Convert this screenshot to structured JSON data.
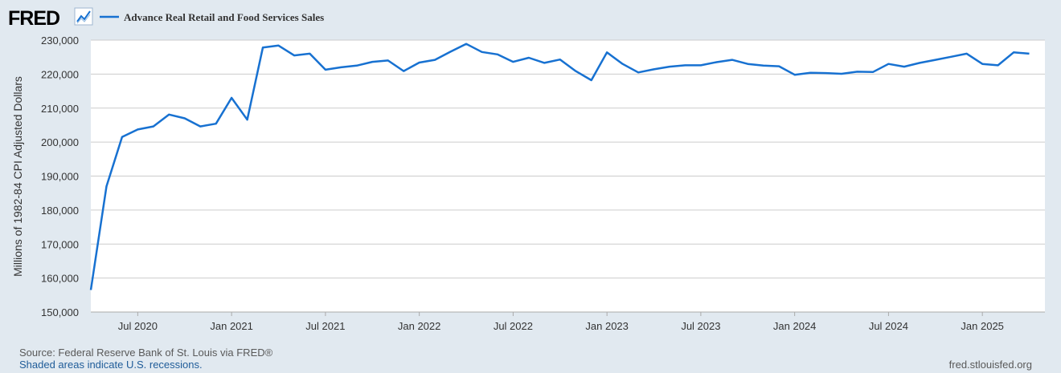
{
  "brand": {
    "logo_text": "FRED",
    "logo_icon": "trend-line-icon"
  },
  "colors": {
    "background": "#e1e9f0",
    "series_line": "#1771d1",
    "plot_bg": "#ffffff",
    "grid": "#cccccc",
    "axis_text": "#333333",
    "link": "#1f5c99"
  },
  "footer": {
    "source": "Source: Federal Reserve Bank of St. Louis via FRED®",
    "recessions": "Shaded areas indicate U.S. recessions.",
    "site": "fred.stlouisfed.org"
  },
  "chart_data": {
    "type": "line",
    "title": "",
    "xlabel": "",
    "ylabel": "Millions of 1982-84 CPI Adjusted Dollars",
    "legend_position": "top-left",
    "grid": true,
    "ylim": [
      150000,
      230000
    ],
    "xlim": [
      "2020-04",
      "2025-05"
    ],
    "y_ticks": [
      150000,
      160000,
      170000,
      180000,
      190000,
      200000,
      210000,
      220000,
      230000
    ],
    "y_tick_labels": [
      "150,000",
      "160,000",
      "170,000",
      "180,000",
      "190,000",
      "200,000",
      "210,000",
      "220,000",
      "230,000"
    ],
    "x_ticks": [
      "2020-07",
      "2021-01",
      "2021-07",
      "2022-01",
      "2022-07",
      "2023-01",
      "2023-07",
      "2024-01",
      "2024-07",
      "2025-01"
    ],
    "x_tick_labels": [
      "Jul 2020",
      "Jan 2021",
      "Jul 2021",
      "Jan 2022",
      "Jul 2022",
      "Jan 2023",
      "Jul 2023",
      "Jan 2024",
      "Jul 2024",
      "Jan 2025"
    ],
    "series": [
      {
        "name": "Advance Real Retail and Food Services Sales",
        "x": [
          "2020-04",
          "2020-05",
          "2020-06",
          "2020-07",
          "2020-08",
          "2020-09",
          "2020-10",
          "2020-11",
          "2020-12",
          "2021-01",
          "2021-02",
          "2021-03",
          "2021-04",
          "2021-05",
          "2021-06",
          "2021-07",
          "2021-08",
          "2021-09",
          "2021-10",
          "2021-11",
          "2021-12",
          "2022-01",
          "2022-02",
          "2022-03",
          "2022-04",
          "2022-05",
          "2022-06",
          "2022-07",
          "2022-08",
          "2022-09",
          "2022-10",
          "2022-11",
          "2022-12",
          "2023-01",
          "2023-02",
          "2023-03",
          "2023-04",
          "2023-05",
          "2023-06",
          "2023-07",
          "2023-08",
          "2023-09",
          "2023-10",
          "2023-11",
          "2023-12",
          "2024-01",
          "2024-02",
          "2024-03",
          "2024-04",
          "2024-05",
          "2024-06",
          "2024-07",
          "2024-08",
          "2024-09",
          "2024-10",
          "2024-11",
          "2024-12",
          "2025-01",
          "2025-02",
          "2025-03",
          "2025-04"
        ],
        "values": [
          156500,
          187000,
          201500,
          203700,
          204600,
          208100,
          207000,
          204600,
          205400,
          213000,
          206600,
          227800,
          228400,
          225500,
          226000,
          221300,
          222000,
          222500,
          223600,
          224000,
          220900,
          223400,
          224200,
          226600,
          228900,
          226500,
          225800,
          223600,
          224800,
          223300,
          224300,
          220900,
          218200,
          226400,
          223000,
          220500,
          221400,
          222200,
          222600,
          222600,
          223500,
          224200,
          223000,
          222500,
          222300,
          219800,
          220400,
          220300,
          220100,
          220700,
          220600,
          223000,
          222200,
          223300,
          224200,
          225100,
          226000,
          223000,
          222600,
          226400,
          226000
        ]
      }
    ]
  }
}
